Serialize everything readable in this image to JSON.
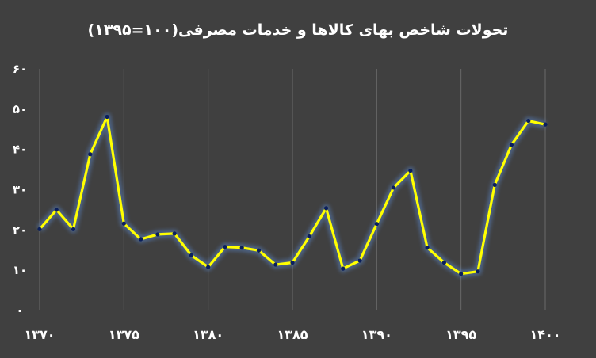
{
  "chart_data": {
    "type": "line",
    "title": "تحولات شاخص بهای کالاها و خدمات مصرفی(۱۰۰=۱۳۹۵)",
    "xlabel": "",
    "ylabel": "",
    "x": [
      1370,
      1371,
      1372,
      1373,
      1374,
      1375,
      1376,
      1377,
      1378,
      1379,
      1380,
      1381,
      1382,
      1383,
      1384,
      1385,
      1386,
      1387,
      1388,
      1389,
      1390,
      1391,
      1392,
      1393,
      1394,
      1395,
      1396,
      1397,
      1398,
      1399,
      1400
    ],
    "series": [
      {
        "name": "",
        "values": [
          20.2,
          25,
          20.2,
          38.8,
          48.1,
          21.6,
          17.7,
          18.9,
          19.1,
          13.7,
          10.8,
          15.8,
          15.6,
          14.9,
          11.4,
          11.9,
          18.4,
          25.4,
          10.4,
          12.4,
          21.5,
          30.5,
          34.7,
          15.6,
          11.9,
          9.1,
          9.7,
          31.2,
          41.2,
          47.1,
          46.2
        ]
      }
    ],
    "xlim": [
      1370,
      1400
    ],
    "ylim": [
      0,
      60
    ],
    "x_ticks": [
      {
        "value": 1370,
        "label": "۱۳۷۰"
      },
      {
        "value": 1375,
        "label": "۱۳۷۵"
      },
      {
        "value": 1380,
        "label": "۱۳۸۰"
      },
      {
        "value": 1385,
        "label": "۱۳۸۵"
      },
      {
        "value": 1390,
        "label": "۱۳۹۰"
      },
      {
        "value": 1395,
        "label": "۱۳۹۵"
      },
      {
        "value": 1400,
        "label": "۱۴۰۰"
      }
    ],
    "y_ticks": [
      {
        "value": 0,
        "label": "۰"
      },
      {
        "value": 10,
        "label": "۱۰"
      },
      {
        "value": 20,
        "label": "۲۰"
      },
      {
        "value": 30,
        "label": "۳۰"
      },
      {
        "value": 40,
        "label": "۴۰"
      },
      {
        "value": 50,
        "label": "۵۰"
      },
      {
        "value": 60,
        "label": "۶۰"
      }
    ],
    "grid": "vertical",
    "legend": "none",
    "colors": {
      "background": "#404040",
      "line": "#ffff00",
      "glow": "#5b8bd8",
      "marker": "#0a1f5c",
      "grid": "#6a6a6a",
      "text": "#ffffff"
    }
  }
}
